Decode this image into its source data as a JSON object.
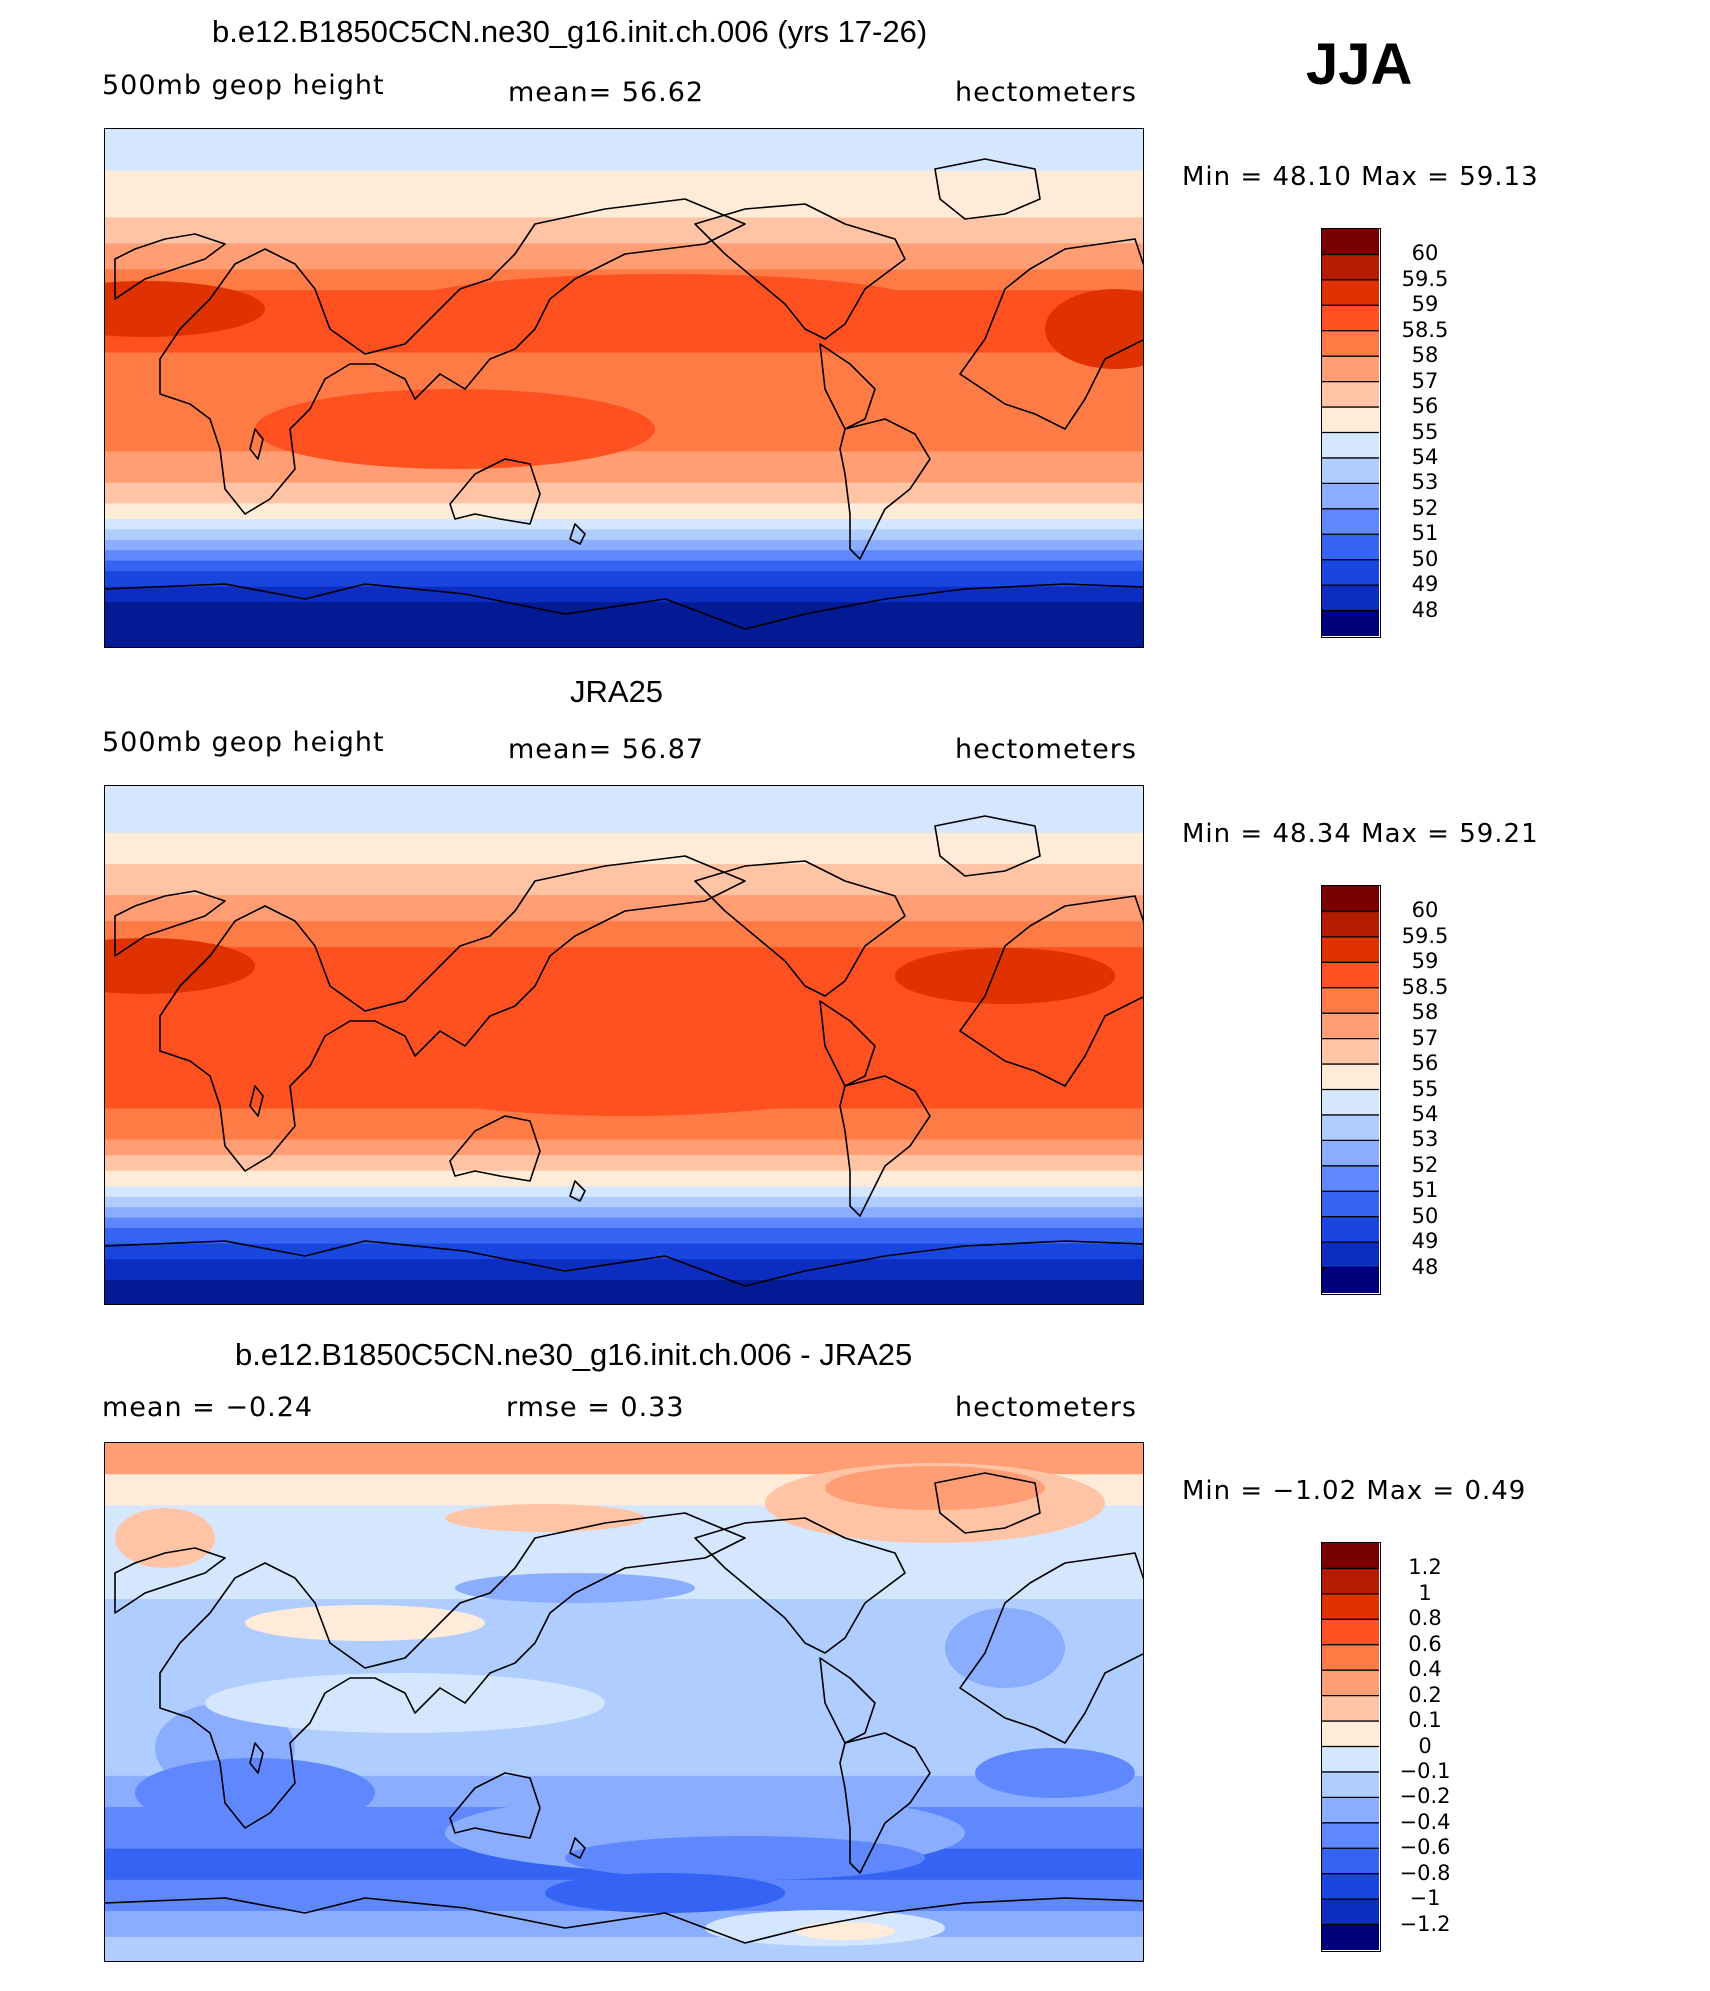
{
  "season": "JJA",
  "panels": [
    {
      "title": "b.e12.B1850C5CN.ne30_g16.init.ch.006 (yrs 17-26)",
      "left": "500mb  geop  height",
      "center": "mean=   56.62",
      "right": "hectometers",
      "minmax": "Min  =    48.10  Max  =    59.13",
      "field": "model",
      "levels": [
        "60",
        "59.5",
        "59",
        "58.5",
        "58",
        "57",
        "56",
        "55",
        "54",
        "53",
        "52",
        "51",
        "50",
        "49",
        "48"
      ]
    },
    {
      "title": "JRA25",
      "left": "500mb  geop  height",
      "center": "mean=   56.87",
      "right": "hectometers",
      "minmax": "Min  =    48.34  Max  =    59.21",
      "field": "obs",
      "levels": [
        "60",
        "59.5",
        "59",
        "58.5",
        "58",
        "57",
        "56",
        "55",
        "54",
        "53",
        "52",
        "51",
        "50",
        "49",
        "48"
      ]
    },
    {
      "title": "b.e12.B1850C5CN.ne30_g16.init.ch.006 - JRA25",
      "left": "mean  =    −0.24",
      "center": "rmse  =     0.33",
      "right": "hectometers",
      "minmax": "Min  =   −1.02  Max  =     0.49",
      "field": "diff",
      "levels": [
        "1.2",
        "1",
        "0.8",
        "0.6",
        "0.4",
        "0.2",
        "0.1",
        "0",
        "−0.1",
        "−0.2",
        "−0.4",
        "−0.6",
        "−0.8",
        "−1",
        "−1.2"
      ]
    }
  ],
  "colors": [
    "#7a0000",
    "#b31c00",
    "#e03200",
    "#ff5020",
    "#ff7b45",
    "#ff9d74",
    "#ffc4a6",
    "#ffecd8",
    "#d4e7ff",
    "#b0cdff",
    "#8aadff",
    "#5f88ff",
    "#3564f5",
    "#1a46e0",
    "#0d2cc0",
    "#021b94",
    "#00007a"
  ]
}
